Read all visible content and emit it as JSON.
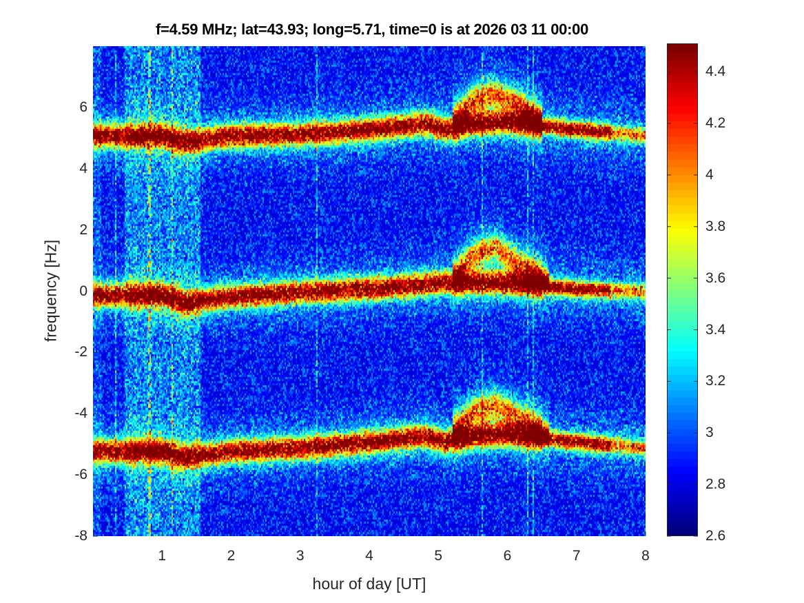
{
  "chart_data": {
    "type": "heatmap",
    "title": "f=4.59 MHz;  lat=43.93; long=5.71, time=0 is at 2026 03 11 00:00",
    "xlabel": "hour of day [UT]",
    "ylabel": "frequency [Hz]",
    "xlim": [
      0,
      8
    ],
    "ylim": [
      -8,
      8
    ],
    "xticks": [
      "1",
      "2",
      "3",
      "4",
      "5",
      "6",
      "7",
      "8"
    ],
    "yticks": [
      "-8",
      "-6",
      "-4",
      "-2",
      "0",
      "2",
      "4",
      "6"
    ],
    "colormap": "jet",
    "clim": [
      2.6,
      4.51
    ],
    "colorbar_ticks": [
      "2.6",
      "2.8",
      "3",
      "3.2",
      "3.4",
      "3.6",
      "3.8",
      "4",
      "4.2",
      "4.4"
    ],
    "traces": [
      {
        "name": "upper sideband",
        "hours": [
          0,
          1,
          1.3,
          2,
          3,
          4,
          4.8,
          5.1,
          5.5,
          6,
          7,
          8
        ],
        "freq_hz": [
          5.1,
          5.1,
          4.9,
          5.1,
          5.15,
          5.3,
          5.5,
          5.3,
          5.5,
          5.55,
          5.3,
          5.1
        ]
      },
      {
        "name": "center",
        "hours": [
          0,
          1,
          1.3,
          2,
          3,
          4,
          5,
          6,
          7,
          8
        ],
        "freq_hz": [
          -0.1,
          -0.1,
          -0.35,
          -0.15,
          0.0,
          0.1,
          0.3,
          0.3,
          0.1,
          0.0
        ]
      },
      {
        "name": "lower sideband",
        "hours": [
          0,
          1,
          1.3,
          2,
          3,
          4,
          4.8,
          5.1,
          5.5,
          6,
          7,
          8
        ],
        "freq_hz": [
          -5.2,
          -5.2,
          -5.4,
          -5.2,
          -5.1,
          -4.9,
          -4.7,
          -4.9,
          -4.7,
          -4.65,
          -4.9,
          -5.1
        ]
      },
      {
        "name": "upper arc",
        "hours": [
          5.2,
          5.5,
          5.8,
          6.1,
          6.5
        ],
        "freq_hz": [
          5.6,
          6.3,
          6.5,
          6.2,
          5.6
        ]
      },
      {
        "name": "center arc",
        "hours": [
          5.2,
          5.5,
          5.8,
          6.1,
          6.6
        ],
        "freq_hz": [
          0.5,
          1.2,
          1.5,
          1.0,
          0.4
        ]
      },
      {
        "name": "lower arc",
        "hours": [
          5.2,
          5.5,
          5.8,
          6.1,
          6.6
        ],
        "freq_hz": [
          -4.5,
          -3.9,
          -3.7,
          -4.0,
          -4.6
        ]
      }
    ]
  }
}
